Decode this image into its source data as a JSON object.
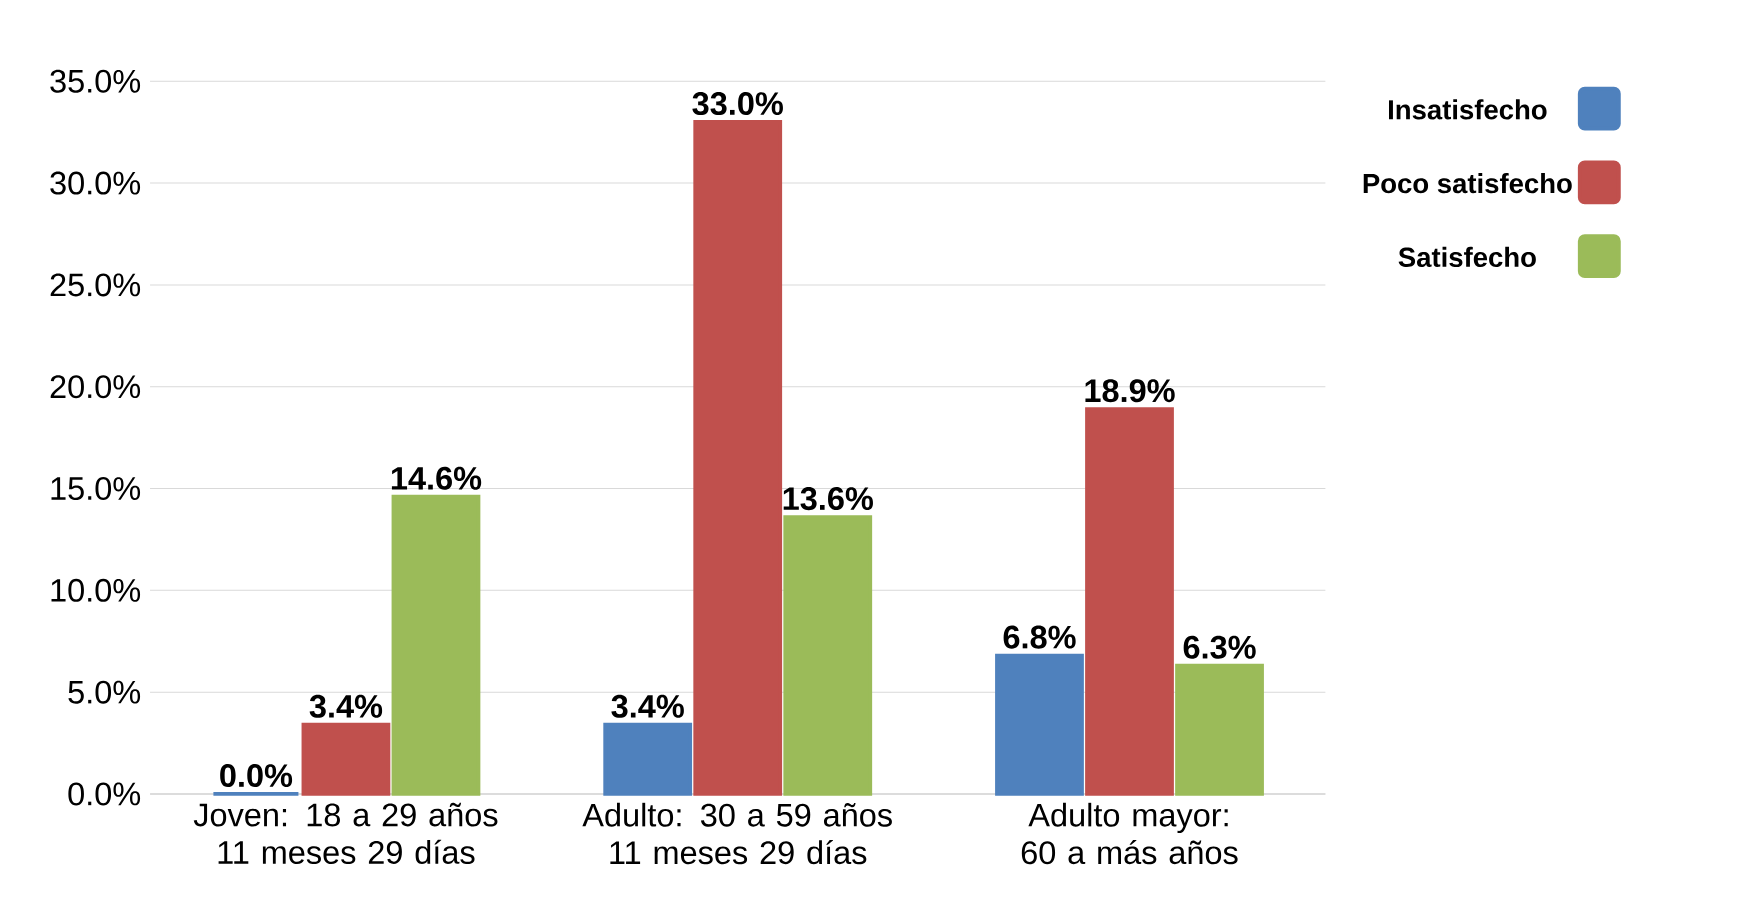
{
  "chart_data": {
    "type": "bar",
    "categories": [
      "Joven: 18 a 29 años 11 meses 29 días",
      "Adulto: 30 a 59 años 11 meses 29 días",
      "Adulto mayor: 60 a más años"
    ],
    "series": [
      {
        "name": "Insatisfecho",
        "color": "#4f81bd",
        "values": [
          0.0,
          3.4,
          6.8
        ],
        "value_labels": [
          "0.0%",
          "3.4%",
          "6.8%"
        ]
      },
      {
        "name": "Poco satisfecho",
        "color": "#c0504d",
        "values": [
          3.4,
          33.0,
          18.9
        ],
        "value_labels": [
          "3.4%",
          "33.0%",
          "18.9%"
        ]
      },
      {
        "name": "Satisfecho",
        "color": "#9bbb59",
        "values": [
          14.6,
          13.6,
          6.3
        ],
        "value_labels": [
          "14.6%",
          "13.6%",
          "6.3%"
        ]
      }
    ],
    "ylim": [
      0,
      35
    ],
    "yticks": [
      {
        "value": 0,
        "label": "0.0%"
      },
      {
        "value": 5,
        "label": "5.0%"
      },
      {
        "value": 10,
        "label": "10.0%"
      },
      {
        "value": 15,
        "label": "15.0%"
      },
      {
        "value": 20,
        "label": "20.0%"
      },
      {
        "value": 25,
        "label": "25.0%"
      },
      {
        "value": 30,
        "label": "30.0%"
      },
      {
        "value": 35,
        "label": "35.0%"
      }
    ],
    "grid": "y",
    "legend": "top right"
  }
}
